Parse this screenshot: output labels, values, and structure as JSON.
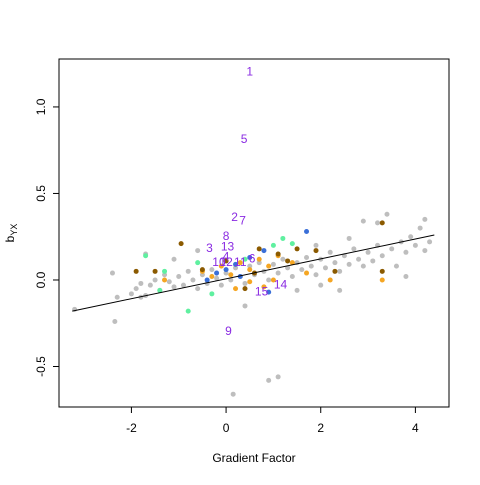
{
  "chart_data": {
    "type": "scatter",
    "xlabel": "Gradient Factor",
    "ylabel": {
      "base": "b",
      "sub": "YX"
    },
    "xlim": [
      -3.53,
      4.71
    ],
    "ylim": [
      -0.734,
      1.277
    ],
    "xticks": [
      -2,
      0,
      2,
      4
    ],
    "yticks": [
      -0.5,
      {
        "value": 0,
        "label": "0.0"
      },
      0.5,
      {
        "value": 1,
        "label": "1.0"
      }
    ],
    "series": [
      {
        "color": "#bebebe",
        "x": [
          -3.2,
          -2.4,
          -2.35,
          -2.3,
          -2,
          -1.9,
          -1.8,
          -1.7,
          -1.6,
          -1.5,
          -1.4,
          -1.3,
          -1.2,
          -1.1,
          -1.0,
          -0.9,
          -0.8,
          -0.7,
          -0.6,
          -0.5,
          -0.4,
          -0.3,
          -0.2,
          -0.1,
          0,
          0.1,
          0.2,
          0.3,
          0.4,
          0.5,
          0.6,
          0.7,
          0.8,
          0.9,
          1.0,
          1.1,
          1.2,
          1.3,
          1.4,
          1.5,
          1.6,
          1.7,
          1.8,
          1.9,
          2.0,
          2.1,
          2.2,
          2.3,
          2.4,
          2.5,
          2.6,
          2.7,
          2.8,
          2.9,
          3.0,
          3.1,
          3.2,
          3.3,
          3.4,
          3.5,
          3.6,
          3.7,
          3.8,
          3.9,
          4.0,
          4.1,
          4.2,
          4.3,
          0.15,
          1.1,
          0.9,
          3.8,
          2.4,
          -0.6,
          1.5,
          2.9,
          3.2,
          4.2,
          -1.7,
          1.9,
          -1.8,
          -1.1,
          0.4,
          2.0,
          2.6
        ],
        "values": [
          -0.17,
          0.04,
          -0.24,
          -0.1,
          -0.08,
          -0.05,
          -0.02,
          -0.09,
          -0.03,
          0.0,
          -0.06,
          0.03,
          -0.01,
          -0.04,
          0.02,
          -0.03,
          0.05,
          0.0,
          -0.05,
          0.03,
          -0.02,
          0.06,
          0.01,
          -0.03,
          0.04,
          0.0,
          0.07,
          0.02,
          -0.02,
          0.08,
          0.03,
          0.1,
          0.05,
          0.0,
          0.09,
          0.04,
          0.12,
          0.07,
          0.02,
          0.1,
          0.06,
          0.13,
          0.08,
          0.03,
          0.12,
          0.07,
          0.16,
          0.1,
          0.05,
          0.14,
          0.09,
          0.18,
          0.12,
          0.08,
          0.16,
          0.11,
          0.2,
          0.14,
          0.38,
          0.18,
          0.08,
          0.22,
          0.16,
          0.25,
          0.2,
          0.3,
          0.17,
          0.22,
          -0.66,
          -0.56,
          -0.58,
          0.02,
          -0.06,
          0.17,
          -0.06,
          0.34,
          0.33,
          0.35,
          0.15,
          0.2,
          -0.1,
          0.12,
          -0.15,
          -0.03,
          0.24
        ]
      },
      {
        "color": "#f5a623",
        "x": [
          -0.5,
          -0.3,
          -0.1,
          0.1,
          0.3,
          0.5,
          0.7,
          0.9,
          1.1,
          1.4,
          0.2,
          0.5,
          0.8,
          1.0,
          1.7,
          2.2,
          -1.3,
          3.3
        ],
        "values": [
          0.05,
          0.02,
          0.08,
          0.03,
          0.1,
          0.06,
          0.12,
          0.08,
          0.14,
          0.1,
          -0.05,
          -0.01,
          -0.04,
          0.0,
          0.04,
          0.0,
          0.0,
          0.0
        ]
      },
      {
        "color": "#8b5a00",
        "x": [
          -1.9,
          -1.5,
          -0.95,
          -0.5,
          0.0,
          0.6,
          0.7,
          1.3,
          1.9,
          2.3,
          3.3,
          3.3,
          0.4,
          1.1,
          1.5
        ],
        "values": [
          0.05,
          0.05,
          0.21,
          0.06,
          0.11,
          0.04,
          0.18,
          0.11,
          0.17,
          0.05,
          0.05,
          0.33,
          -0.05,
          0.15,
          0.18
        ]
      },
      {
        "color": "#3a6fd8",
        "x": [
          -0.4,
          -0.2,
          0.0,
          0.2,
          0.5,
          0.8,
          1.7,
          0.9,
          0.3
        ],
        "values": [
          0.0,
          0.04,
          0.06,
          0.09,
          0.13,
          0.17,
          0.28,
          -0.07,
          0.02
        ]
      },
      {
        "color": "#5ff0a0",
        "x": [
          -1.7,
          -1.4,
          -1.3,
          -0.8,
          -0.6,
          -0.3,
          1.2,
          1.4,
          0.4,
          1.0
        ],
        "values": [
          0.14,
          -0.06,
          0.05,
          -0.18,
          0.1,
          -0.08,
          0.24,
          0.21,
          0.12,
          0.2
        ]
      }
    ],
    "point_labels": {
      "color": "#8a2be2",
      "labels": [
        "1",
        "5",
        "2",
        "7",
        "8",
        "3",
        "13",
        "10",
        "12",
        "4",
        "11",
        "6",
        "9",
        "14",
        "15"
      ],
      "x": [
        0.5,
        0.38,
        0.18,
        0.35,
        0.0,
        -0.35,
        0.03,
        -0.15,
        0.0,
        0.0,
        0.3,
        0.55,
        0.05,
        1.15,
        0.75
      ],
      "values": [
        1.2,
        0.81,
        0.36,
        0.34,
        0.25,
        0.18,
        0.19,
        0.1,
        0.1,
        0.13,
        0.1,
        0.12,
        -0.3,
        -0.03,
        -0.07
      ]
    },
    "fit": {
      "color": "#000000",
      "x": [
        -3.25,
        4.4
      ],
      "values": [
        -0.18,
        0.26
      ]
    }
  }
}
